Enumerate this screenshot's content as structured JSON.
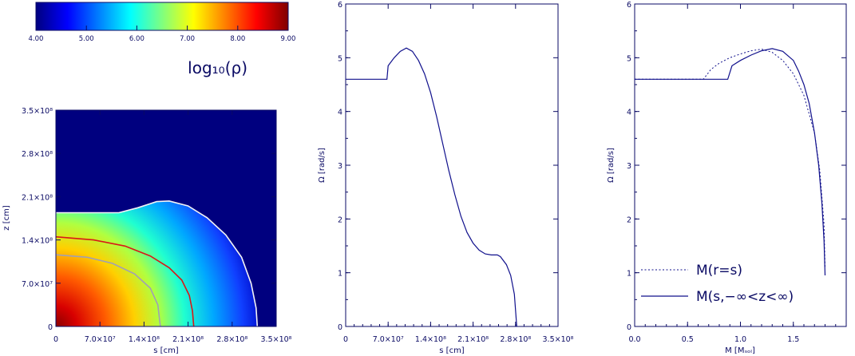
{
  "colors": {
    "ink": "#0a0a64",
    "curve": "#10108c",
    "outside": "#00007f",
    "white_contour": "#f4f4f4",
    "red_contour": "#d81818",
    "gray_contour": "#a0a0b4"
  },
  "chart_data": [
    {
      "type": "colorbar",
      "colormap": "jet",
      "range": [
        4.0,
        9.0
      ],
      "tick_values": [
        4,
        5,
        6,
        7,
        8,
        9
      ],
      "tick_labels": [
        "4.00",
        "5.00",
        "6.00",
        "7.00",
        "8.00",
        "9.00"
      ],
      "label": "log₁₀(ρ)"
    },
    {
      "type": "heatmap",
      "quantity": "log10 density (meridional cut)",
      "xlabel": "s [cm]",
      "ylabel": "z [cm]",
      "xlim": [
        0,
        350000000.0
      ],
      "ylim": [
        0,
        350000000.0
      ],
      "x_ticks": [
        0,
        70000000.0,
        140000000.0,
        210000000.0,
        280000000.0,
        350000000.0
      ],
      "y_ticks": [
        0,
        70000000.0,
        140000000.0,
        210000000.0,
        280000000.0,
        350000000.0
      ],
      "x_tick_labels": [
        "0",
        "7.0×10⁷",
        "1.4×10⁸",
        "2.1×10⁸",
        "2.8×10⁸",
        "3.5×10⁸"
      ],
      "y_tick_labels": [
        "0",
        "7.0×10⁷",
        "1.4×10⁸",
        "2.1×10⁸",
        "2.8×10⁸",
        "3.5×10⁸"
      ],
      "color_range": [
        4.0,
        9.0
      ],
      "contours": [
        {
          "name": "white",
          "points": [
            [
              0,
              184000000.0
            ],
            [
              50000000.0,
              184000000.0
            ],
            [
              100000000.0,
              184000000.0
            ],
            [
              130000000.0,
              192000000.0
            ],
            [
              160000000.0,
              202000000.0
            ],
            [
              180000000.0,
              203000000.0
            ],
            [
              210000000.0,
              195000000.0
            ],
            [
              240000000.0,
              176000000.0
            ],
            [
              270000000.0,
              148000000.0
            ],
            [
              295000000.0,
              112000000.0
            ],
            [
              310000000.0,
              70000000.0
            ],
            [
              318000000.0,
              30000000.0
            ],
            [
              320000000.0,
              0
            ]
          ]
        },
        {
          "name": "red",
          "points": [
            [
              0,
              145000000.0
            ],
            [
              60000000.0,
              140000000.0
            ],
            [
              110000000.0,
              130000000.0
            ],
            [
              150000000.0,
              114000000.0
            ],
            [
              180000000.0,
              95000000.0
            ],
            [
              200000000.0,
              75000000.0
            ],
            [
              212000000.0,
              50000000.0
            ],
            [
              217000000.0,
              25000000.0
            ],
            [
              219000000.0,
              0
            ]
          ]
        },
        {
          "name": "gray",
          "points": [
            [
              0,
              116000000.0
            ],
            [
              50000000.0,
              112000000.0
            ],
            [
              90000000.0,
              102000000.0
            ],
            [
              125000000.0,
              85000000.0
            ],
            [
              150000000.0,
              62000000.0
            ],
            [
              162000000.0,
              35000000.0
            ],
            [
              166000000.0,
              0
            ]
          ]
        }
      ]
    },
    {
      "type": "line",
      "xlabel": "s [cm]",
      "ylabel": "Ω [rad/s]",
      "xlim": [
        0,
        350000000.0
      ],
      "ylim": [
        0,
        6
      ],
      "x_ticks": [
        0,
        70000000.0,
        140000000.0,
        210000000.0,
        280000000.0,
        350000000.0
      ],
      "x_tick_labels": [
        "0",
        "7.0×10⁷",
        "1.4×10⁸",
        "2.1×10⁸",
        "2.8×10⁸",
        "3.5×10⁸"
      ],
      "y_ticks": [
        0,
        1,
        2,
        3,
        4,
        5,
        6
      ],
      "y_tick_labels": [
        "0",
        "1",
        "2",
        "3",
        "4",
        "5",
        "6"
      ],
      "series": [
        {
          "style": "solid",
          "points": [
            [
              0,
              4.6
            ],
            [
              68000000.0,
              4.6
            ],
            [
              70000000.0,
              4.85
            ],
            [
              80000000.0,
              5.0
            ],
            [
              90000000.0,
              5.12
            ],
            [
              100000000.0,
              5.18
            ],
            [
              110000000.0,
              5.12
            ],
            [
              120000000.0,
              4.95
            ],
            [
              130000000.0,
              4.7
            ],
            [
              140000000.0,
              4.35
            ],
            [
              150000000.0,
              3.9
            ],
            [
              160000000.0,
              3.4
            ],
            [
              170000000.0,
              2.9
            ],
            [
              180000000.0,
              2.45
            ],
            [
              190000000.0,
              2.05
            ],
            [
              200000000.0,
              1.75
            ],
            [
              210000000.0,
              1.55
            ],
            [
              220000000.0,
              1.42
            ],
            [
              230000000.0,
              1.35
            ],
            [
              240000000.0,
              1.33
            ],
            [
              250000000.0,
              1.33
            ],
            [
              255000000.0,
              1.3
            ],
            [
              265000000.0,
              1.15
            ],
            [
              272000000.0,
              0.95
            ],
            [
              278000000.0,
              0.6
            ],
            [
              280000000.0,
              0.3
            ],
            [
              282000000.0,
              0
            ]
          ]
        }
      ]
    },
    {
      "type": "line",
      "xlabel": "M [Mₛₒₗ]",
      "ylabel": "Ω [rad/s]",
      "xlim": [
        0,
        2.0
      ],
      "ylim": [
        0,
        6
      ],
      "x_ticks": [
        0,
        0.5,
        1.0,
        1.5
      ],
      "x_tick_labels": [
        "0.0",
        "0.5",
        "1.0",
        "1.5"
      ],
      "y_ticks": [
        0,
        1,
        2,
        3,
        4,
        5,
        6
      ],
      "y_tick_labels": [
        "0",
        "1",
        "2",
        "3",
        "4",
        "5",
        "6"
      ],
      "legend_position": "bottom-left",
      "series": [
        {
          "name": "M(r=s)",
          "style": "dotted",
          "points": [
            [
              0,
              4.6
            ],
            [
              0.65,
              4.6
            ],
            [
              0.72,
              4.78
            ],
            [
              0.8,
              4.9
            ],
            [
              0.9,
              5.0
            ],
            [
              1.0,
              5.07
            ],
            [
              1.1,
              5.13
            ],
            [
              1.2,
              5.16
            ],
            [
              1.3,
              5.1
            ],
            [
              1.4,
              4.95
            ],
            [
              1.5,
              4.7
            ],
            [
              1.6,
              4.3
            ],
            [
              1.7,
              3.6
            ],
            [
              1.75,
              2.9
            ],
            [
              1.79,
              1.9
            ],
            [
              1.8,
              1.1
            ]
          ]
        },
        {
          "name": "M(s,−∞<z<∞)",
          "style": "solid",
          "points": [
            [
              0,
              4.6
            ],
            [
              0.88,
              4.6
            ],
            [
              0.92,
              4.85
            ],
            [
              1.0,
              4.95
            ],
            [
              1.1,
              5.05
            ],
            [
              1.2,
              5.13
            ],
            [
              1.3,
              5.17
            ],
            [
              1.4,
              5.12
            ],
            [
              1.5,
              4.95
            ],
            [
              1.55,
              4.75
            ],
            [
              1.6,
              4.5
            ],
            [
              1.65,
              4.15
            ],
            [
              1.7,
              3.6
            ],
            [
              1.74,
              3.0
            ],
            [
              1.77,
              2.3
            ],
            [
              1.79,
              1.6
            ],
            [
              1.8,
              0.95
            ]
          ]
        }
      ]
    }
  ]
}
